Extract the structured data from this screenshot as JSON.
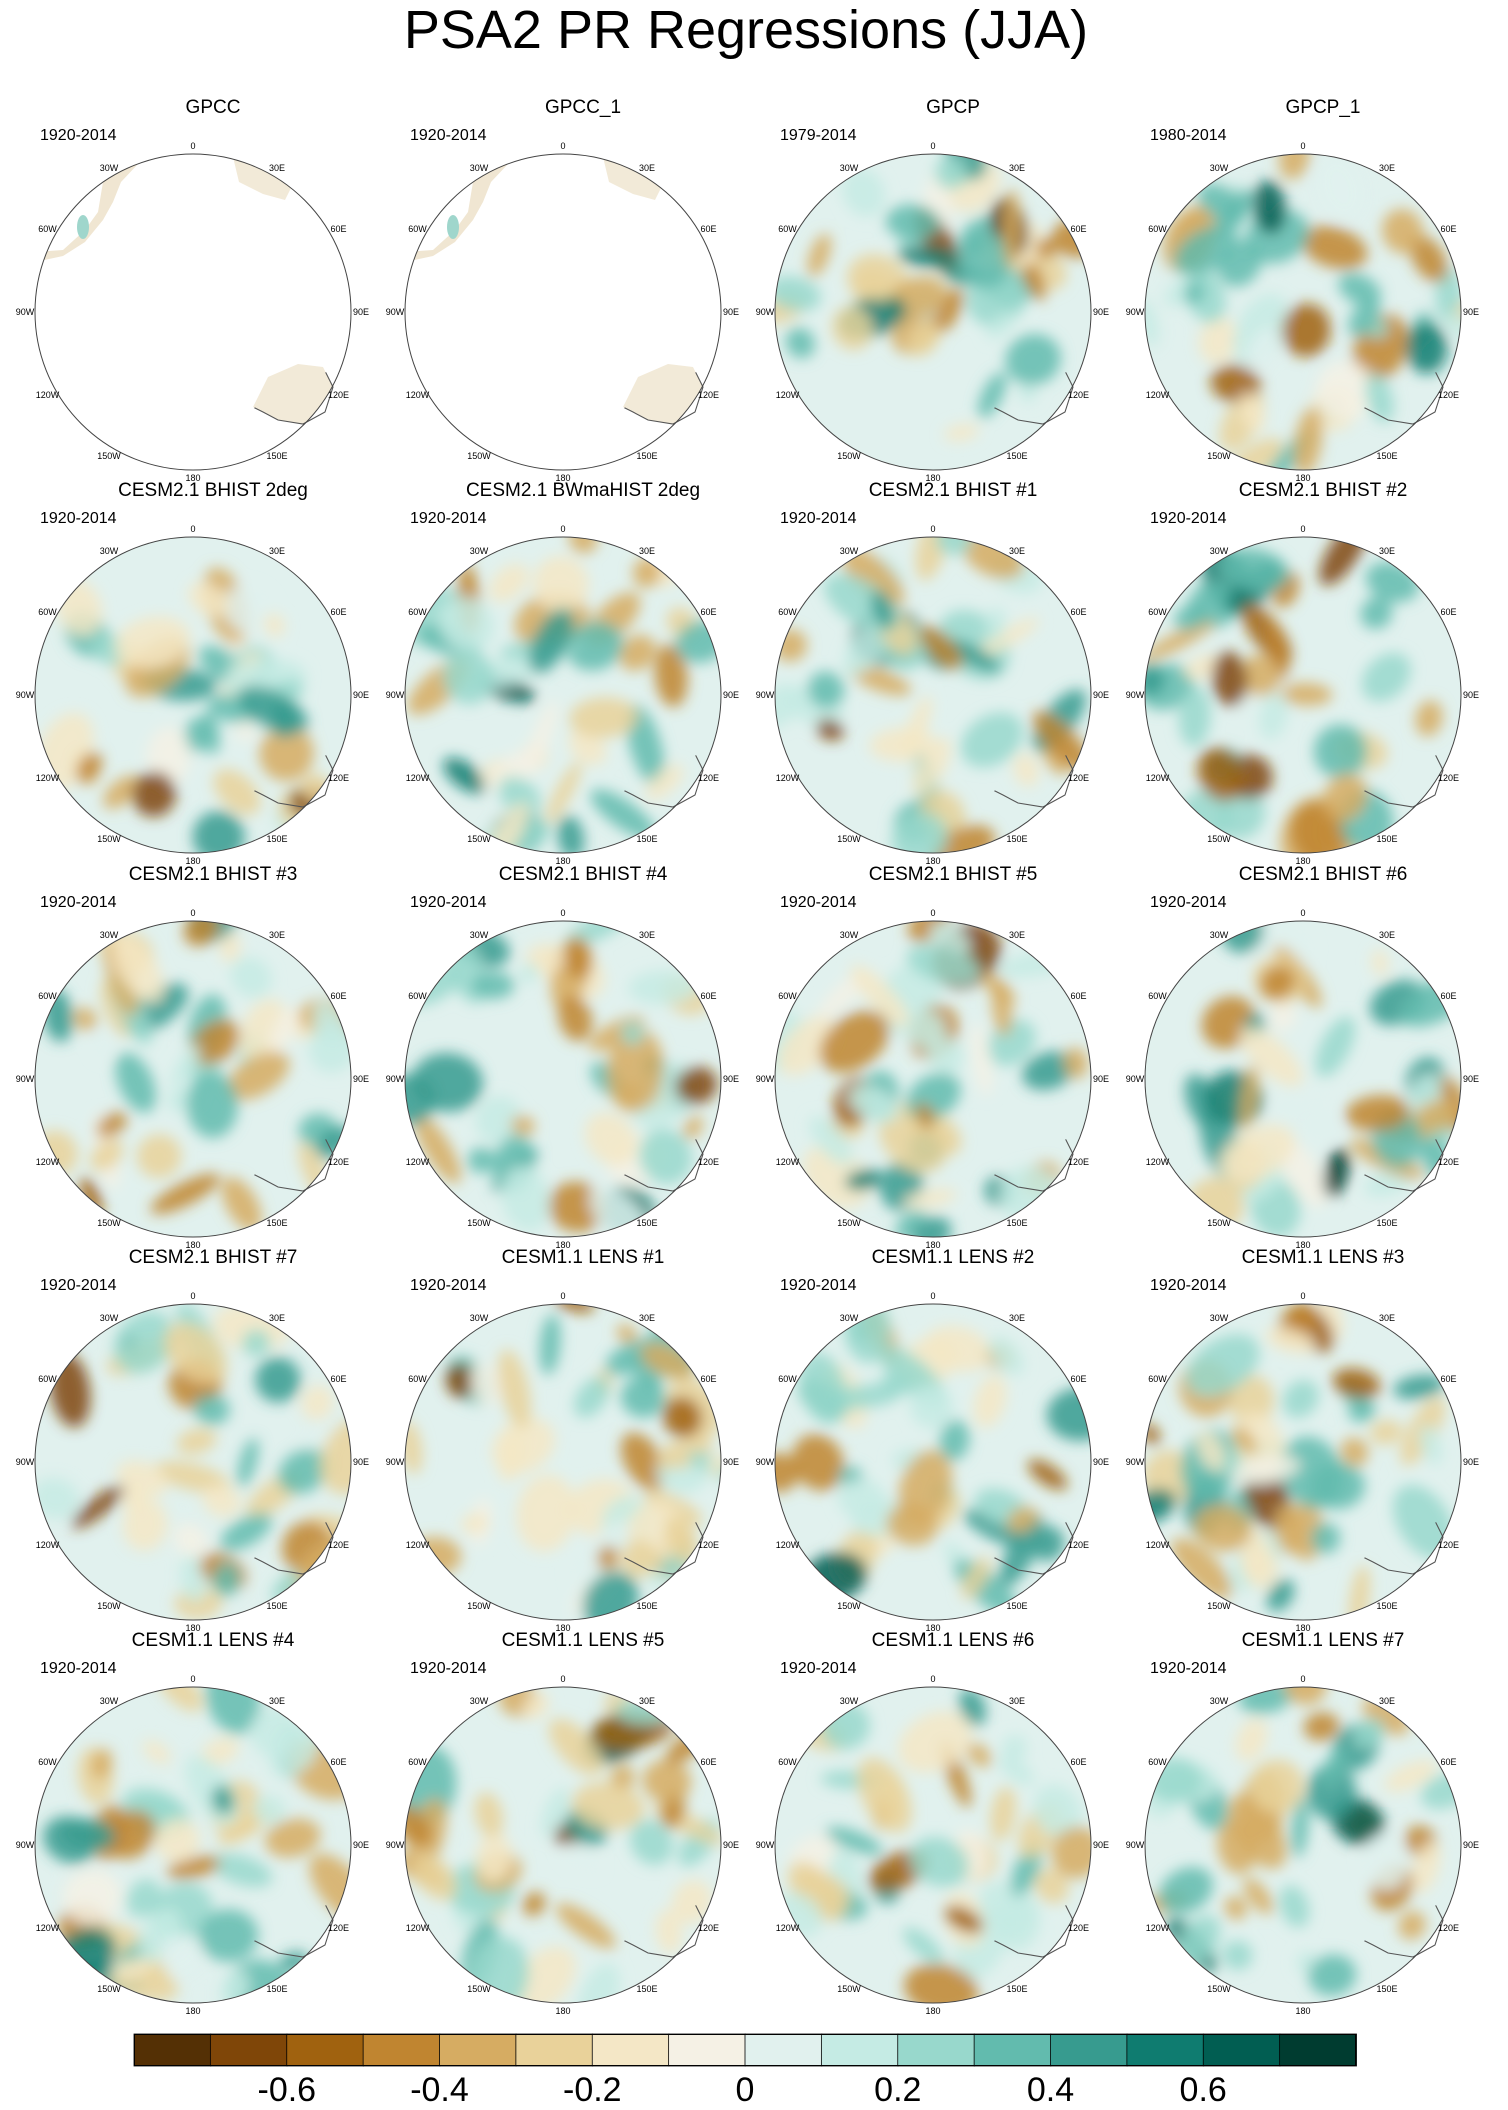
{
  "title": "PSA2 PR Regressions (JJA)",
  "longitude_labels": [
    "0",
    "30E",
    "60E",
    "90E",
    "120E",
    "150E",
    "180",
    "150W",
    "120W",
    "90W",
    "60W",
    "30W"
  ],
  "panels": [
    {
      "name": "GPCC",
      "years": "1920-2014",
      "coverage": "land"
    },
    {
      "name": "GPCC_1",
      "years": "1920-2014",
      "coverage": "land"
    },
    {
      "name": "GPCP",
      "years": "1979-2014",
      "coverage": "global"
    },
    {
      "name": "GPCP_1",
      "years": "1980-2014",
      "coverage": "global"
    },
    {
      "name": "CESM2.1 BHIST 2deg",
      "years": "1920-2014",
      "coverage": "global"
    },
    {
      "name": "CESM2.1 BWmaHIST 2deg",
      "years": "1920-2014",
      "coverage": "global"
    },
    {
      "name": "CESM2.1 BHIST #1",
      "years": "1920-2014",
      "coverage": "global"
    },
    {
      "name": "CESM2.1 BHIST #2",
      "years": "1920-2014",
      "coverage": "global"
    },
    {
      "name": "CESM2.1 BHIST #3",
      "years": "1920-2014",
      "coverage": "global"
    },
    {
      "name": "CESM2.1 BHIST #4",
      "years": "1920-2014",
      "coverage": "global"
    },
    {
      "name": "CESM2.1 BHIST #5",
      "years": "1920-2014",
      "coverage": "global"
    },
    {
      "name": "CESM2.1 BHIST #6",
      "years": "1920-2014",
      "coverage": "global"
    },
    {
      "name": "CESM2.1 BHIST #7",
      "years": "1920-2014",
      "coverage": "global"
    },
    {
      "name": "CESM1.1 LENS #1",
      "years": "1920-2014",
      "coverage": "global"
    },
    {
      "name": "CESM1.1 LENS #2",
      "years": "1920-2014",
      "coverage": "global"
    },
    {
      "name": "CESM1.1 LENS #3",
      "years": "1920-2014",
      "coverage": "global"
    },
    {
      "name": "CESM1.1 LENS #4",
      "years": "1920-2014",
      "coverage": "global"
    },
    {
      "name": "CESM1.1 LENS #5",
      "years": "1920-2014",
      "coverage": "global"
    },
    {
      "name": "CESM1.1 LENS #6",
      "years": "1920-2014",
      "coverage": "global"
    },
    {
      "name": "CESM1.1 LENS #7",
      "years": "1920-2014",
      "coverage": "global"
    }
  ],
  "colorbar": {
    "colors": [
      "#543005",
      "#7f4608",
      "#a0620f",
      "#c08530",
      "#d6ac62",
      "#e9d29a",
      "#f4e7c6",
      "#f5f1e5",
      "#e1f1ee",
      "#c5ebe4",
      "#98d8cc",
      "#62bbae",
      "#379b8f",
      "#0f7c70",
      "#015e52",
      "#003c30"
    ],
    "labels": [
      "-0.6",
      "-0.4",
      "-0.2",
      "0",
      "0.2",
      "0.4",
      "0.6"
    ],
    "label_values": [
      -0.6,
      -0.4,
      -0.2,
      0,
      0.2,
      0.4,
      0.6
    ],
    "min": -0.8,
    "max": 0.8
  }
}
